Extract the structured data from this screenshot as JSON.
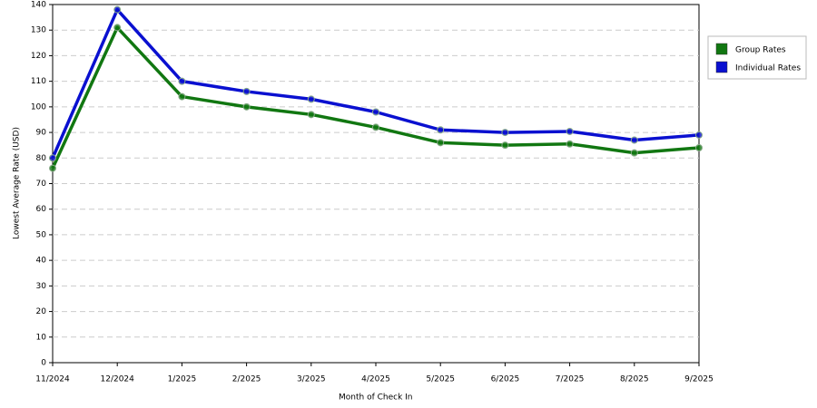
{
  "chart_data": {
    "type": "line",
    "x_label": "Month of Check In",
    "y_label": "Lowest Average Rate (USD)",
    "categories": [
      "11/2024",
      "12/2024",
      "1/2025",
      "2/2025",
      "3/2025",
      "4/2025",
      "5/2025",
      "6/2025",
      "7/2025",
      "8/2025",
      "9/2025"
    ],
    "series": [
      {
        "name": "Group Rates",
        "color": "#117711",
        "values": [
          76,
          131,
          104,
          100,
          97,
          92,
          86,
          85,
          85.5,
          82,
          84
        ]
      },
      {
        "name": "Individual Rates",
        "color": "#0a10d0",
        "values": [
          80,
          138,
          110,
          106,
          103,
          98,
          91,
          90,
          90.4,
          87,
          89
        ]
      }
    ],
    "ylim": [
      0,
      140
    ],
    "yticks": [
      0,
      10,
      20,
      30,
      40,
      50,
      60,
      70,
      80,
      90,
      100,
      110,
      120,
      130,
      140
    ],
    "grid": true,
    "legend": "right"
  }
}
